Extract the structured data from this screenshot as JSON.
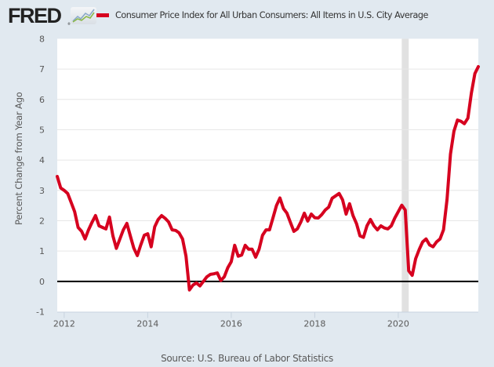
{
  "header": {
    "logo_text": "FRED",
    "logo_icon": "fred-line-chart-icon"
  },
  "chart_data": {
    "type": "line",
    "title": "",
    "xlabel": "",
    "ylabel": "Percent Change from Year Ago",
    "source": "Source: U.S. Bureau of Labor Statistics",
    "ylim": [
      -1,
      8
    ],
    "yticks": [
      "8",
      "7",
      "6",
      "5",
      "4",
      "3",
      "2",
      "1",
      "0",
      "-1"
    ],
    "ytick_values": [
      8,
      7,
      6,
      5,
      4,
      3,
      2,
      1,
      0,
      -1
    ],
    "xlim": [
      "2011-11",
      "2021-12"
    ],
    "xticks": [
      "2012",
      "2014",
      "2016",
      "2018",
      "2020"
    ],
    "grid": true,
    "legend_position": "top",
    "zero_line": true,
    "recessions": [
      {
        "start": "2020-02",
        "end": "2020-04"
      }
    ],
    "colors": {
      "series": "#d6011f",
      "recession": "#e1e1e1",
      "grid": "#e6e6e6",
      "zero_line": "#000000",
      "background": "#e1e9f0",
      "plot_background": "#ffffff"
    },
    "series": [
      {
        "name": "Consumer Price Index for All Urban Consumers: All Items in U.S. City Average",
        "start": "2011-11",
        "frequency": "monthly",
        "values": [
          3.46,
          3.08,
          3.0,
          2.9,
          2.6,
          2.3,
          1.78,
          1.65,
          1.4,
          1.7,
          1.95,
          2.17,
          1.83,
          1.78,
          1.73,
          2.12,
          1.5,
          1.09,
          1.4,
          1.7,
          1.91,
          1.5,
          1.1,
          0.85,
          1.2,
          1.52,
          1.57,
          1.14,
          1.8,
          2.04,
          2.17,
          2.08,
          1.96,
          1.7,
          1.68,
          1.6,
          1.4,
          0.83,
          -0.28,
          -0.12,
          -0.05,
          -0.15,
          0.0,
          0.15,
          0.23,
          0.25,
          0.28,
          0.03,
          0.15,
          0.45,
          0.65,
          1.19,
          0.83,
          0.87,
          1.19,
          1.06,
          1.06,
          0.8,
          1.06,
          1.52,
          1.7,
          1.7,
          2.1,
          2.5,
          2.75,
          2.4,
          2.25,
          1.95,
          1.65,
          1.73,
          1.96,
          2.25,
          1.99,
          2.22,
          2.1,
          2.09,
          2.2,
          2.35,
          2.45,
          2.74,
          2.82,
          2.9,
          2.69,
          2.22,
          2.56,
          2.17,
          1.9,
          1.5,
          1.45,
          1.83,
          2.04,
          1.83,
          1.7,
          1.83,
          1.76,
          1.73,
          1.83,
          2.09,
          2.3,
          2.51,
          2.35,
          0.35,
          0.2,
          0.75,
          1.05,
          1.3,
          1.4,
          1.2,
          1.14,
          1.3,
          1.4,
          1.7,
          2.7,
          4.2,
          4.95,
          5.32,
          5.28,
          5.2,
          5.38,
          6.2,
          6.85,
          7.08
        ]
      }
    ]
  }
}
